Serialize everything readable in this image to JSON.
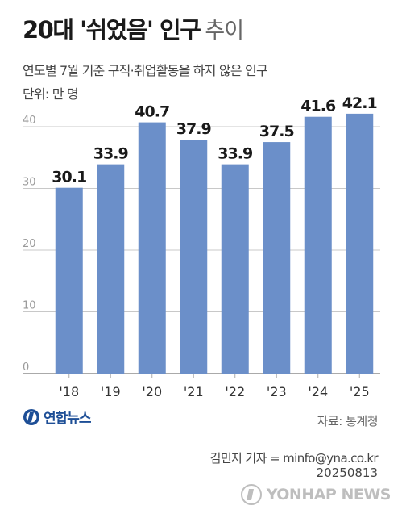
{
  "header": {
    "title_main": "20대 '쉬었음' 인구",
    "title_sub": "추이",
    "subtitle": "연도별 7월 기준 구직·취업활동을 하지 않은 인구",
    "unit": "단위: 만 명"
  },
  "footer": {
    "logo_text": "연합뉴스",
    "source": "자료: 통계청",
    "reporter": "김민지 기자 = minfo@yna.co.kr",
    "date": "20250813",
    "watermark": "YONHAP NEWS"
  },
  "colors": {
    "bar": "#6b8fc9",
    "grid": "#c8c8c8",
    "axis_tick": "#aaaaaa",
    "tick_text": "#9a9a9a",
    "category_text": "#333333",
    "value_text": "#1a1a1a",
    "logo": "#1d4e96"
  },
  "chart_data": {
    "type": "bar",
    "categories": [
      "'18",
      "'19",
      "'20",
      "'21",
      "'22",
      "'23",
      "'24",
      "'25"
    ],
    "values": [
      30.1,
      33.9,
      40.7,
      37.9,
      33.9,
      37.5,
      41.6,
      42.1
    ],
    "value_labels": [
      "30.1",
      "33.9",
      "40.7",
      "37.9",
      "33.9",
      "37.5",
      "41.6",
      "42.1"
    ],
    "yticks": [
      0,
      10,
      20,
      30,
      40
    ],
    "ytick_labels": [
      "0",
      "10",
      "20",
      "30",
      "40"
    ],
    "ylim": [
      0,
      43
    ],
    "grid": true,
    "legend": "none"
  }
}
